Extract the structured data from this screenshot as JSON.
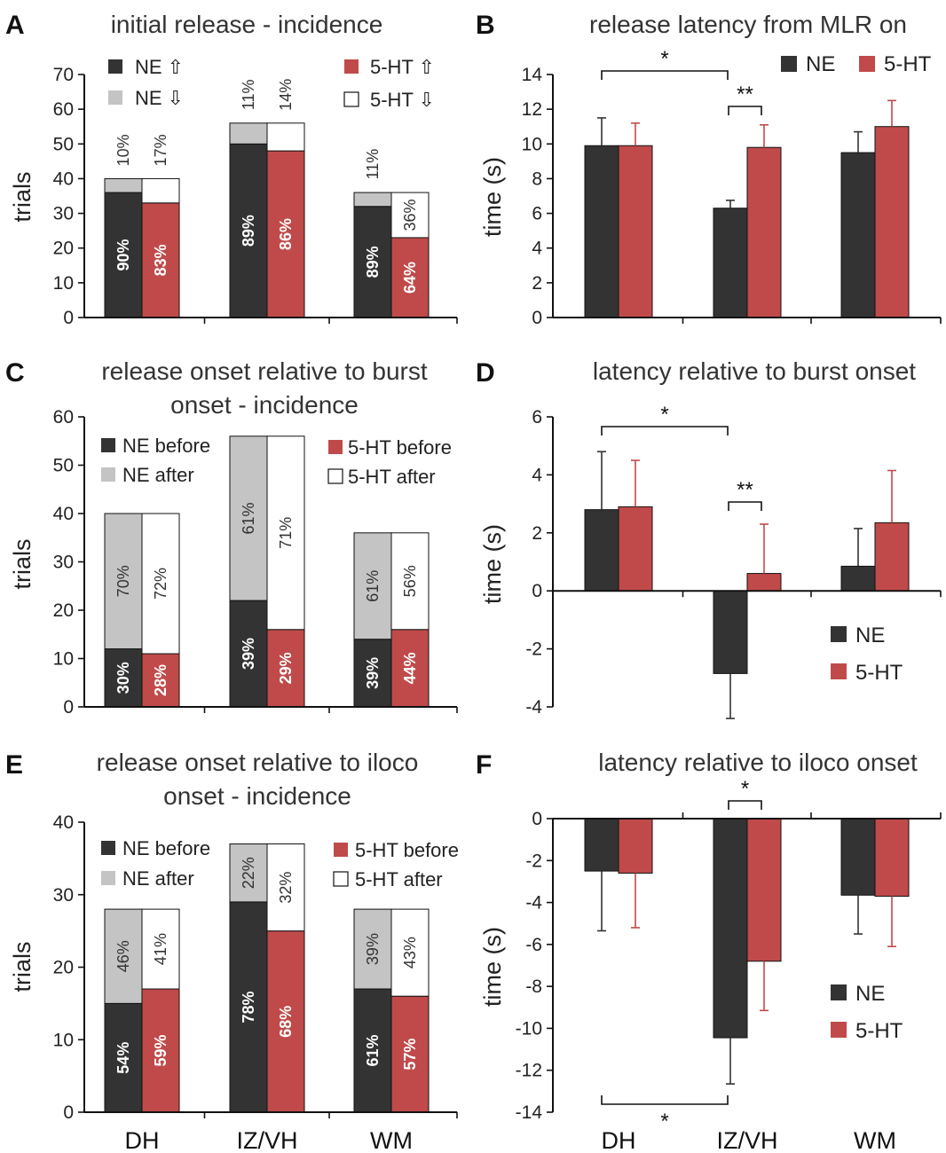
{
  "colors": {
    "ne": "#333333",
    "ht": "#c04a4a",
    "ne_down": "#c4c4c4",
    "ht_down": "#ffffff",
    "axis": "#111111"
  },
  "x_categories": [
    "DH",
    "IZ/VH",
    "WM"
  ],
  "chart_data": [
    {
      "panel": "A",
      "type": "bar",
      "stacked": true,
      "title": "initial release - incidence",
      "title_line2": "",
      "ylabel": "trials",
      "ylim": [
        0,
        70
      ],
      "yticks": [
        0,
        10,
        20,
        30,
        40,
        50,
        60,
        70
      ],
      "categories": [
        "DH",
        "IZ/VH",
        "WM"
      ],
      "series": [
        {
          "name": "NE",
          "bottom": [
            36,
            50,
            32
          ],
          "top": [
            4,
            6,
            4
          ],
          "bottom_pct": [
            "90%",
            "89%",
            "89%"
          ],
          "top_pct": [
            "10%",
            "11%",
            "11%"
          ]
        },
        {
          "name": "5-HT",
          "bottom": [
            33,
            48,
            23
          ],
          "top": [
            7,
            8,
            13
          ],
          "bottom_pct": [
            "83%",
            "86%",
            "64%"
          ],
          "top_pct": [
            "17%",
            "14%",
            "36%"
          ]
        }
      ],
      "legend": {
        "ne_up": "NE ⇧",
        "ne_down": "NE ⇩",
        "ht_up": "5-HT ⇧",
        "ht_down": "5-HT ⇩"
      }
    },
    {
      "panel": "B",
      "type": "bar",
      "title": "release latency from MLR on",
      "ylabel": "time (s)",
      "ylim": [
        0,
        14
      ],
      "yticks": [
        0,
        2,
        4,
        6,
        8,
        10,
        12,
        14
      ],
      "categories": [
        "DH",
        "IZ/VH",
        "WM"
      ],
      "series": [
        {
          "name": "NE",
          "values": [
            9.9,
            6.3,
            9.5
          ],
          "errors": [
            1.6,
            0.45,
            1.2
          ]
        },
        {
          "name": "5-HT",
          "values": [
            9.9,
            9.8,
            11.0
          ],
          "errors": [
            1.3,
            1.3,
            1.5
          ]
        }
      ],
      "significance": [
        {
          "label": "*",
          "between": "DH-NE / IZ/VH-NE"
        },
        {
          "label": "**",
          "between": "IZ/VH-NE / IZ/VH-5-HT"
        }
      ]
    },
    {
      "panel": "C",
      "type": "bar",
      "stacked": true,
      "title": "release onset relative to burst",
      "title_line2": "onset - incidence",
      "ylabel": "trials",
      "ylim": [
        0,
        60
      ],
      "yticks": [
        0,
        10,
        20,
        30,
        40,
        50,
        60
      ],
      "categories": [
        "DH",
        "IZ/VH",
        "WM"
      ],
      "series": [
        {
          "name": "NE",
          "bottom": [
            12,
            22,
            14
          ],
          "top": [
            28,
            34,
            22
          ],
          "bottom_pct": [
            "30%",
            "39%",
            "39%"
          ],
          "top_pct": [
            "70%",
            "61%",
            "61%"
          ]
        },
        {
          "name": "5-HT",
          "bottom": [
            11,
            16,
            16
          ],
          "top": [
            29,
            40,
            20
          ],
          "bottom_pct": [
            "28%",
            "29%",
            "44%"
          ],
          "top_pct": [
            "72%",
            "71%",
            "56%"
          ]
        }
      ],
      "legend": {
        "ne_up": "NE before",
        "ne_down": "NE after",
        "ht_up": "5-HT before",
        "ht_down": "5-HT after"
      }
    },
    {
      "panel": "D",
      "type": "bar",
      "title": "latency relative to burst onset",
      "ylabel": "time (s)",
      "ylim": [
        -4,
        6
      ],
      "yticks": [
        -4,
        -2,
        0,
        2,
        4,
        6
      ],
      "categories": [
        "DH",
        "IZ/VH",
        "WM"
      ],
      "series": [
        {
          "name": "NE",
          "values": [
            2.8,
            -2.85,
            0.85
          ],
          "errors": [
            2.0,
            1.55,
            1.3
          ]
        },
        {
          "name": "5-HT",
          "values": [
            2.9,
            0.6,
            2.35
          ],
          "errors": [
            1.6,
            1.7,
            1.8
          ]
        }
      ],
      "significance": [
        {
          "label": "*",
          "between": "DH-NE / IZ/VH-NE"
        },
        {
          "label": "**",
          "between": "IZ/VH-NE / IZ/VH-5-HT"
        }
      ]
    },
    {
      "panel": "E",
      "type": "bar",
      "stacked": true,
      "title": "release onset relative to iloco",
      "title_line2": "onset - incidence",
      "ylabel": "trials",
      "ylim": [
        0,
        40
      ],
      "yticks": [
        0,
        10,
        20,
        30,
        40
      ],
      "categories": [
        "DH",
        "IZ/VH",
        "WM"
      ],
      "series": [
        {
          "name": "NE",
          "bottom": [
            15,
            29,
            17
          ],
          "top": [
            13,
            8,
            11
          ],
          "bottom_pct": [
            "54%",
            "78%",
            "61%"
          ],
          "top_pct": [
            "46%",
            "22%",
            "39%"
          ]
        },
        {
          "name": "5-HT",
          "bottom": [
            17,
            25,
            16
          ],
          "top": [
            11,
            12,
            12
          ],
          "bottom_pct": [
            "59%",
            "68%",
            "57%"
          ],
          "top_pct": [
            "41%",
            "32%",
            "43%"
          ]
        }
      ],
      "legend": {
        "ne_up": "NE before",
        "ne_down": "NE after",
        "ht_up": "5-HT before",
        "ht_down": "5-HT after"
      }
    },
    {
      "panel": "F",
      "type": "bar",
      "title": "latency relative to iloco onset",
      "ylabel": "time (s)",
      "ylim": [
        -14,
        0
      ],
      "yticks": [
        -14,
        -12,
        -10,
        -8,
        -6,
        -4,
        -2,
        0
      ],
      "categories": [
        "DH",
        "IZ/VH",
        "WM"
      ],
      "series": [
        {
          "name": "NE",
          "values": [
            -2.5,
            -10.45,
            -3.65
          ],
          "errors": [
            2.85,
            2.2,
            1.85
          ]
        },
        {
          "name": "5-HT",
          "values": [
            -2.6,
            -6.8,
            -3.7
          ],
          "errors": [
            2.6,
            2.35,
            2.4
          ]
        }
      ],
      "significance": [
        {
          "label": "*",
          "between": "IZ/VH-NE / IZ/VH-5-HT"
        },
        {
          "label": "*",
          "between": "DH-NE / IZ/VH-NE"
        }
      ]
    }
  ],
  "legend_names": {
    "ne": "NE",
    "ht": "5-HT"
  }
}
